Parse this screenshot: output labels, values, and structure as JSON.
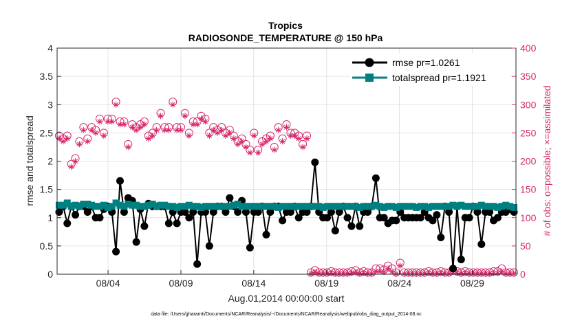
{
  "chart_data": {
    "type": "line",
    "title": "Tropics",
    "subtitle": "RADIOSONDE_TEMPERATURE @ 150 hPa",
    "xlabel": "Aug.01,2014 00:00:00 start",
    "ylabel": "rmse and totalspread",
    "y2label": "# of obs: o=possible; ×=assimilated",
    "footer": "data file: /Users/gharamti/Documents/NCAR/Reanalysis/~/Documents/NCAR/Reanalysis/webpub/obs_diag_output_2014-08.nc",
    "xlim": [
      0,
      31.5
    ],
    "ylim": [
      0,
      4
    ],
    "y2lim": [
      0,
      400
    ],
    "grid": true,
    "legend_position": "top-right",
    "x_ticks": [
      {
        "x": 3.5,
        "label": "08/04"
      },
      {
        "x": 8.5,
        "label": "08/09"
      },
      {
        "x": 13.5,
        "label": "08/14"
      },
      {
        "x": 18.5,
        "label": "08/19"
      },
      {
        "x": 23.5,
        "label": "08/24"
      },
      {
        "x": 28.5,
        "label": "08/29"
      }
    ],
    "y_ticks": [
      {
        "v": 0,
        "label": "0"
      },
      {
        "v": 0.5,
        "label": "0.5"
      },
      {
        "v": 1,
        "label": "1"
      },
      {
        "v": 1.5,
        "label": "1.5"
      },
      {
        "v": 2,
        "label": "2"
      },
      {
        "v": 2.5,
        "label": "2.5"
      },
      {
        "v": 3,
        "label": "3"
      },
      {
        "v": 3.5,
        "label": "3.5"
      },
      {
        "v": 4,
        "label": "4"
      }
    ],
    "y2_ticks": [
      {
        "v": 0,
        "label": "0"
      },
      {
        "v": 50,
        "label": "50"
      },
      {
        "v": 100,
        "label": "100"
      },
      {
        "v": 150,
        "label": "150"
      },
      {
        "v": 200,
        "label": "200"
      },
      {
        "v": 250,
        "label": "250"
      },
      {
        "v": 300,
        "label": "300"
      },
      {
        "v": 350,
        "label": "350"
      },
      {
        "v": 400,
        "label": "400"
      }
    ],
    "series": [
      {
        "name": "rmse pr=1.0261",
        "color": "#000000",
        "marker": "circle",
        "values": [
          1.1,
          1.2,
          0.9,
          1.2,
          1.05,
          1.2,
          1.2,
          1.1,
          1.2,
          1.0,
          1.0,
          1.15,
          1.2,
          1.1,
          0.4,
          1.65,
          1.1,
          1.35,
          1.3,
          0.57,
          1.15,
          0.85,
          1.25,
          1.2,
          1.2,
          1.2,
          1.2,
          0.9,
          1.1,
          0.9,
          1.1,
          1.1,
          1.0,
          1.1,
          0.18,
          1.1,
          1.1,
          0.5,
          1.1,
          1.2,
          1.2,
          1.1,
          1.35,
          1.2,
          1.1,
          1.3,
          1.1,
          0.47,
          1.1,
          1.1,
          1.2,
          0.7,
          1.1,
          1.2,
          1.2,
          0.95,
          1.1,
          1.1,
          1.2,
          1.0,
          1.1,
          1.1,
          1.2,
          1.98,
          1.1,
          1.0,
          1.0,
          1.1,
          0.77,
          1.1,
          1.2,
          1.0,
          0.85,
          1.2,
          0.85,
          1.1,
          1.1,
          1.2,
          1.7,
          1.0,
          1.0,
          0.9,
          0.95,
          0.95,
          1.1,
          1.0,
          1.0,
          1.0,
          1.0,
          1.0,
          1.1,
          1.0,
          0.95,
          1.05,
          0.65,
          1.2,
          1.1,
          0.1,
          1.2,
          0.26,
          1.0,
          1.0,
          1.2,
          1.1,
          0.53,
          1.1,
          1.1,
          0.95,
          1.0,
          1.1,
          1.1,
          1.15,
          1.1
        ]
      },
      {
        "name": "totalspread pr=1.1921",
        "color": "#008080",
        "marker": "square",
        "values": [
          1.22,
          1.22,
          1.26,
          1.2,
          1.22,
          1.2,
          1.24,
          1.24,
          1.22,
          1.2,
          1.2,
          1.22,
          1.18,
          1.2,
          1.26,
          1.22,
          1.2,
          1.24,
          1.22,
          1.22,
          1.2,
          1.2,
          1.22,
          1.24,
          1.2,
          1.22,
          1.22,
          1.2,
          1.2,
          1.18,
          1.2,
          1.2,
          1.22,
          1.2,
          1.2,
          1.18,
          1.2,
          1.2,
          1.2,
          1.2,
          1.2,
          1.2,
          1.2,
          1.22,
          1.24,
          1.2,
          1.2,
          1.2,
          1.2,
          1.2,
          1.2,
          1.2,
          1.2,
          1.2,
          1.18,
          1.2,
          1.2,
          1.2,
          1.2,
          1.2,
          1.2,
          1.2,
          1.2,
          1.2,
          1.2,
          1.18,
          1.2,
          1.2,
          1.2,
          1.2,
          1.2,
          1.2,
          1.2,
          1.2,
          1.18,
          1.2,
          1.2,
          1.2,
          1.22,
          1.2,
          1.18,
          1.2,
          1.2,
          1.18,
          1.2,
          1.2,
          1.2,
          1.2,
          1.18,
          1.2,
          1.2,
          1.18,
          1.2,
          1.2,
          1.2,
          1.2,
          1.2,
          1.22,
          1.2,
          1.22,
          1.2,
          1.2,
          1.2,
          1.2,
          1.22,
          1.2,
          1.2,
          1.2,
          1.18,
          1.2,
          1.22,
          1.2,
          1.18
        ]
      },
      {
        "name": "possible obs",
        "axis": "right",
        "color": "#d6286b",
        "marker": "circle-open",
        "values": [
          245,
          240,
          245,
          195,
          205,
          235,
          260,
          240,
          260,
          255,
          275,
          250,
          275,
          275,
          305,
          270,
          270,
          230,
          265,
          260,
          265,
          270,
          245,
          250,
          260,
          285,
          260,
          260,
          305,
          260,
          260,
          285,
          250,
          270,
          270,
          280,
          275,
          250,
          260,
          255,
          260,
          250,
          255,
          245,
          235,
          240,
          230,
          220,
          250,
          220,
          235,
          240,
          245,
          225,
          260,
          240,
          265,
          250,
          250,
          245,
          230,
          245,
          3,
          7,
          3,
          3,
          3,
          5,
          3,
          3,
          3,
          3,
          5,
          7,
          3,
          5,
          3,
          3,
          10,
          10,
          8,
          15,
          10,
          3,
          20,
          3,
          3,
          3,
          3,
          3,
          3,
          5,
          3,
          3,
          5,
          3,
          3,
          8,
          5,
          3,
          5,
          3,
          3,
          3,
          3,
          3,
          3,
          5,
          5,
          10,
          3,
          3,
          3
        ]
      },
      {
        "name": "assimilated obs",
        "axis": "right",
        "color": "#d6286b",
        "marker": "star",
        "values": [
          240,
          235,
          240,
          190,
          200,
          230,
          255,
          235,
          255,
          250,
          270,
          245,
          270,
          270,
          300,
          265,
          265,
          225,
          260,
          255,
          260,
          265,
          240,
          245,
          255,
          280,
          255,
          255,
          300,
          255,
          255,
          280,
          245,
          265,
          265,
          275,
          270,
          245,
          255,
          250,
          255,
          245,
          250,
          240,
          230,
          235,
          225,
          215,
          245,
          215,
          230,
          235,
          240,
          220,
          255,
          235,
          260,
          245,
          245,
          240,
          225,
          240,
          1,
          3,
          1,
          1,
          1,
          2,
          1,
          1,
          1,
          1,
          2,
          3,
          1,
          2,
          1,
          1,
          5,
          5,
          4,
          10,
          5,
          1,
          15,
          1,
          1,
          1,
          1,
          1,
          1,
          2,
          1,
          1,
          2,
          1,
          1,
          4,
          2,
          1,
          2,
          1,
          1,
          1,
          1,
          1,
          1,
          2,
          2,
          5,
          1,
          1,
          1
        ]
      }
    ]
  }
}
